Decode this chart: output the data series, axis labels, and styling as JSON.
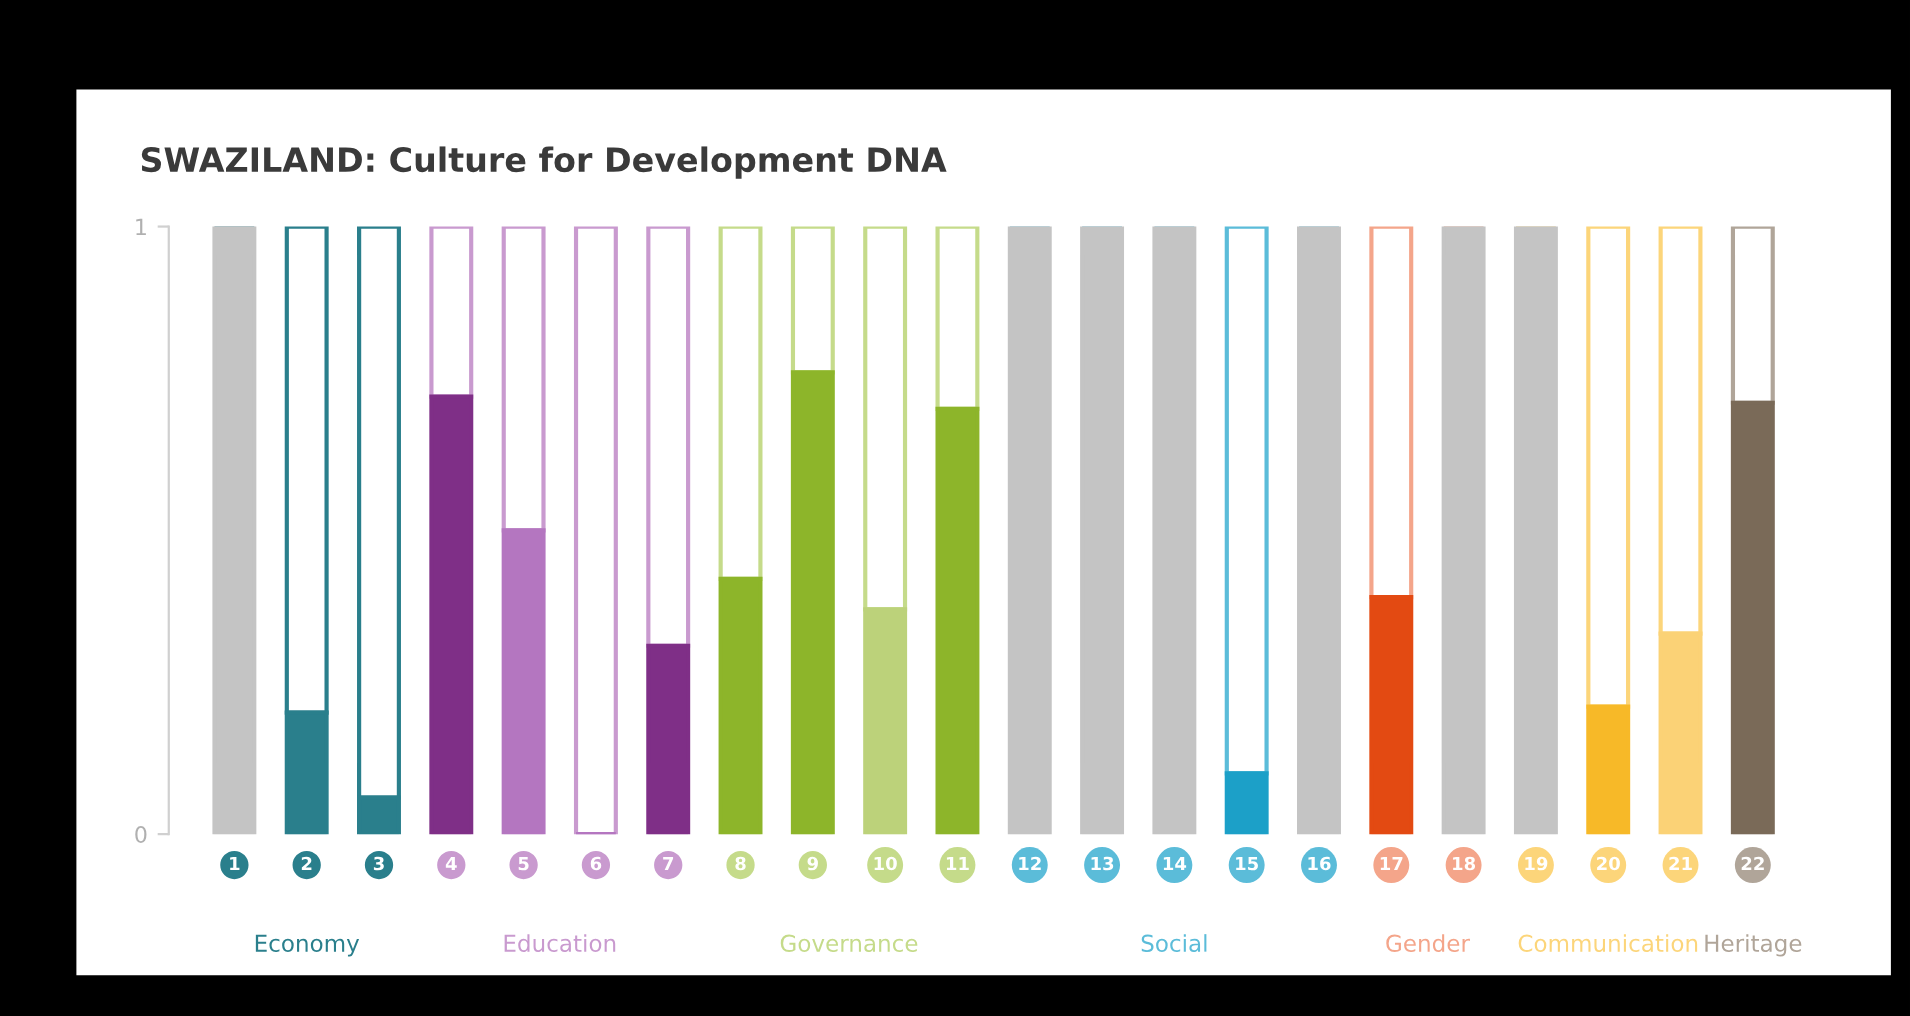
{
  "chart_data": {
    "type": "bar",
    "stacked": true,
    "title": "SWAZILAND: Culture for Development DNA",
    "categories": [
      "1",
      "2",
      "3",
      "4",
      "5",
      "6",
      "7",
      "8",
      "9",
      "10",
      "11",
      "12",
      "13",
      "14",
      "15",
      "16",
      "17",
      "18",
      "19",
      "20",
      "21",
      "22"
    ],
    "series": [
      {
        "colors": [
          "#c4c4c4",
          "#2a7f8c",
          "#2a7f8c",
          "#7f2f87",
          "#b476c0",
          "#b476c0",
          "#7f2f87",
          "#8db52a",
          "#8db52a",
          "#bcd27a",
          "#8db52a",
          "#c4c4c4",
          "#c4c4c4",
          "#c4c4c4",
          "#1ca0c8",
          "#c4c4c4",
          "#e34a12",
          "#c4c4c4",
          "#c4c4c4",
          "#f7b928",
          "#fbd276",
          "#7a6a58"
        ],
        "values": [
          1,
          0.2,
          0.06,
          0.72,
          0.5,
          0,
          0.31,
          0.42,
          0.76,
          0.37,
          0.7,
          1,
          1,
          1,
          0.1,
          1,
          0.39,
          1,
          1,
          0.21,
          0.33,
          0.71
        ]
      },
      {
        "color": "#ffffff",
        "colors": [
          "#2a7f8c",
          "#2a7f8c",
          "#2a7f8c",
          "#c99acf",
          "#c99acf",
          "#c99acf",
          "#c99acf",
          "#c5db8a",
          "#c5db8a",
          "#c5db8a",
          "#c5db8a",
          "#5bbcd9",
          "#5bbcd9",
          "#5bbcd9",
          "#5bbcd9",
          "#5bbcd9",
          "#f4a58a",
          "#f4a58a",
          "#fcd57a",
          "#fcd57a",
          "#fcd57a",
          "#b0a599"
        ],
        "values": [
          0,
          0.8,
          0.94,
          0.28,
          0.5,
          1,
          0.69,
          0.58,
          0.24,
          0.63,
          0.3,
          0,
          0,
          0,
          0.9,
          0,
          0.61,
          0,
          0,
          0.79,
          0.67,
          0.29
        ]
      }
    ],
    "annotations": [
      "Economy",
      "Education",
      "Governance",
      "Social",
      "Gender",
      "Communication",
      "Heritage"
    ],
    "ylim": [
      0,
      1
    ],
    "yticks": [
      0,
      1
    ]
  }
}
